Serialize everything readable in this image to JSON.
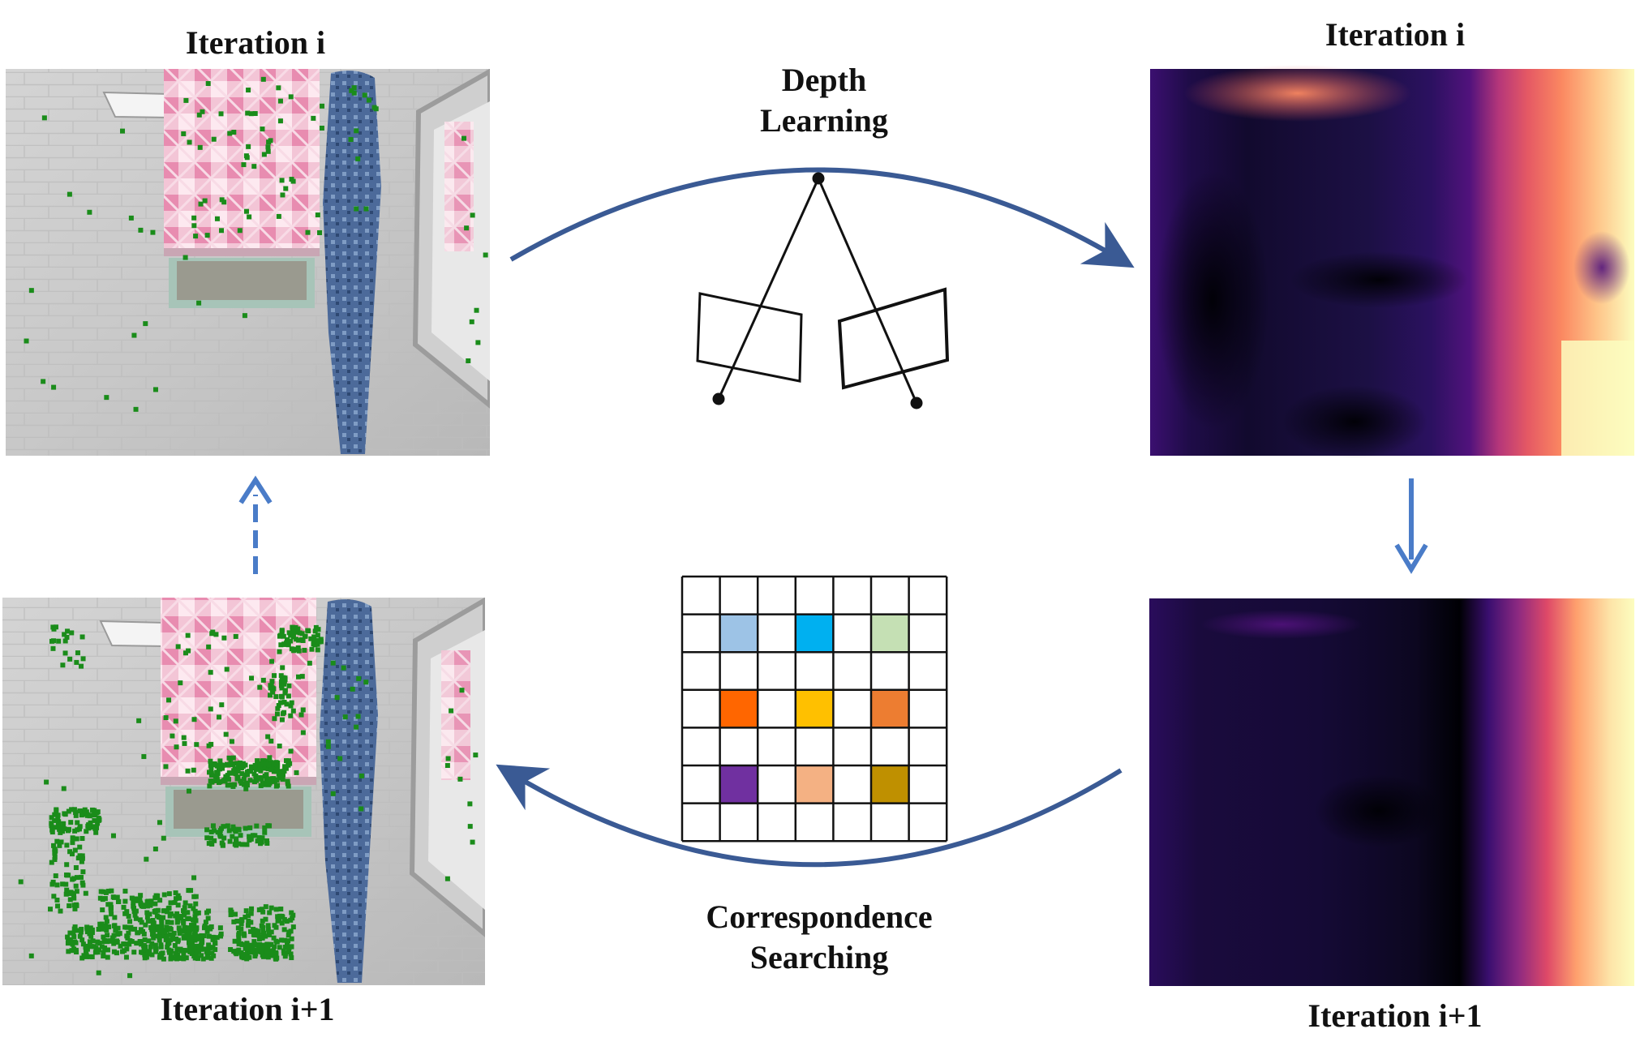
{
  "labels": {
    "top_left": "Iteration i",
    "top_right": "Iteration i",
    "bottom_left": "Iteration i+1",
    "bottom_right": "Iteration i+1",
    "depth_learning_line1": "Depth",
    "depth_learning_line2": "Learning",
    "correspondence_line1": "Correspondence",
    "correspondence_line2": "Searching"
  },
  "colors": {
    "arrow": "#3a5a94",
    "vertical_arrow": "#4a7cc8",
    "keypoint": "#1a8c1a",
    "grid_cells": [
      "#9dc3e6",
      "#00b0f0",
      "#c5e0b4",
      "#ff6600",
      "#ffc000",
      "#ed7d31",
      "#7030a0",
      "#f4b183",
      "#bf9000"
    ]
  },
  "panels": {
    "top_left": "RGB bathroom image with sparse keypoints",
    "bottom_left": "RGB bathroom image with dense keypoints",
    "top_right": "Depth map (magma colormap)",
    "bottom_right": "Refined depth map (magma colormap)"
  }
}
